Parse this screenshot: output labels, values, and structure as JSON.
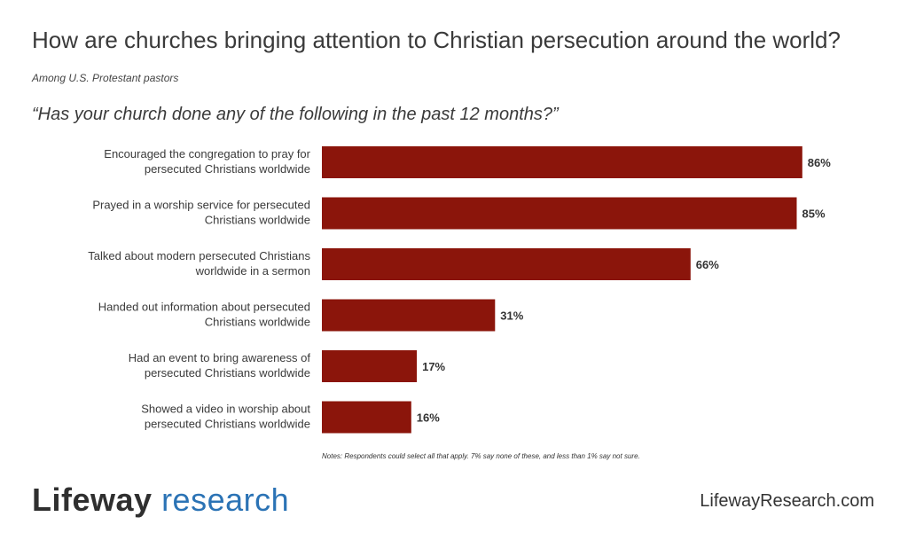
{
  "title": "How are churches bringing attention to Christian persecution around the world?",
  "subtitle": "Among U.S. Protestant pastors",
  "question": "“Has your church done any of the following in the past 12 months?”",
  "notes": "Notes: Respondents could select all that apply. 7% say none of these, and less than 1% say not sure.",
  "brand": {
    "word1": "Lifeway",
    "word2": "research",
    "website": "LifewayResearch.com"
  },
  "colors": {
    "bar": "#8b150b",
    "label": "#3a3a3a",
    "value": "#333333",
    "brand_blue": "#2b73b5"
  },
  "chart_data": {
    "type": "bar",
    "orientation": "horizontal",
    "categories": [
      [
        "Encouraged the congregation to pray for",
        "persecuted Christians worldwide"
      ],
      [
        "Prayed in a worship service for persecuted",
        "Christians worldwide"
      ],
      [
        "Talked about modern persecuted Christians",
        "worldwide in a sermon"
      ],
      [
        "Handed out information about persecuted",
        "Christians worldwide"
      ],
      [
        "Had an event to bring awareness of",
        "persecuted Christians worldwide"
      ],
      [
        "Showed a video in worship about",
        "persecuted Christians worldwide"
      ]
    ],
    "values": [
      86,
      85,
      66,
      31,
      17,
      16
    ],
    "value_labels": [
      "86%",
      "85%",
      "66%",
      "31%",
      "17%",
      "16%"
    ],
    "xlim": [
      0,
      100
    ],
    "grid": false,
    "legend": "none"
  }
}
